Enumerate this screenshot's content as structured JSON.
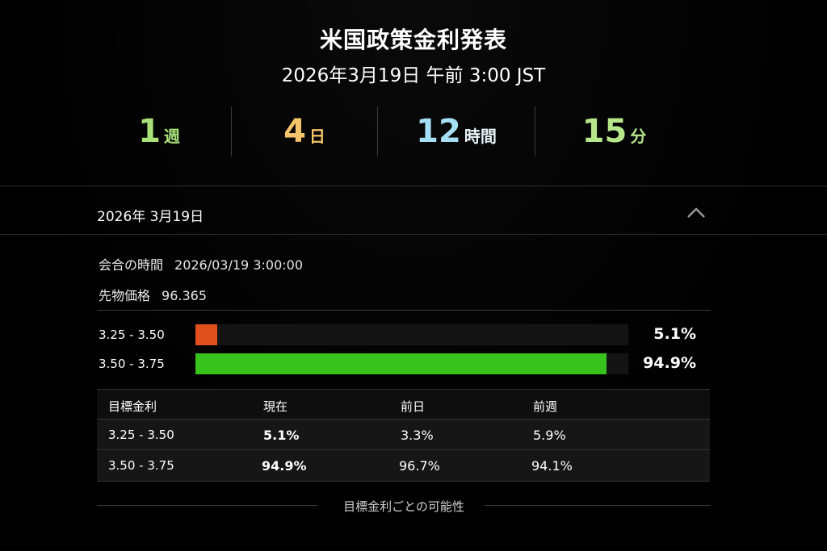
{
  "header": {
    "title": "米国政策金利発表",
    "datetime": "2026年3月19日 午前 3:00 JST"
  },
  "countdown": [
    {
      "value": "1",
      "unit": "週",
      "color": "#a8e07a"
    },
    {
      "value": "4",
      "unit": "日",
      "color": "#f5c46a"
    },
    {
      "value": "12",
      "unit": "時間",
      "color": "#a6dff5"
    },
    {
      "value": "15",
      "unit": "分",
      "color": "#b5e68a"
    }
  ],
  "accordion": {
    "header_date": "2026年 3月19日",
    "chevron_icon": "chevron-up-icon",
    "meeting_time_label": "会合の時間",
    "meeting_time_value": "2026/03/19 3:00:00",
    "futures_price_label": "先物価格",
    "futures_price_value": "96.365"
  },
  "probability_bars": [
    {
      "range": "3.25 - 3.50",
      "pct_label": "5.1%",
      "probability": 5.1,
      "color": "#e0501c"
    },
    {
      "range": "3.50 - 3.75",
      "pct_label": "94.9%",
      "probability": 94.9,
      "color": "#38c21c"
    }
  ],
  "table": {
    "headers": [
      "目標金利",
      "現在",
      "前日",
      "前週"
    ],
    "rows": [
      [
        "3.25 - 3.50",
        "5.1%",
        "3.3%",
        "5.9%"
      ],
      [
        "3.50 - 3.75",
        "94.9%",
        "96.7%",
        "94.1%"
      ]
    ]
  },
  "footer": {
    "caption": "目標金利ごとの可能性"
  }
}
